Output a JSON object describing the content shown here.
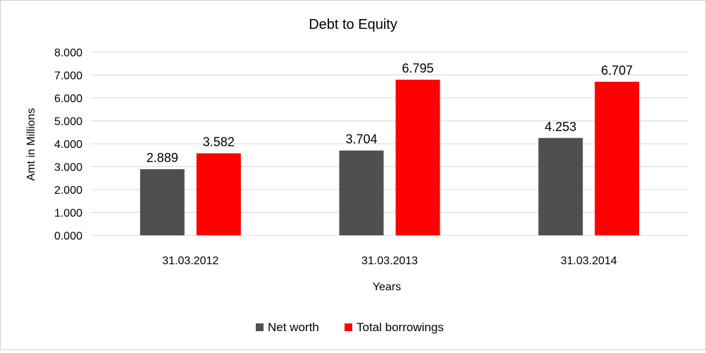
{
  "chart_data": {
    "type": "bar",
    "title": "Debt to Equity",
    "xlabel": "Years",
    "ylabel": "Amt in Millions",
    "categories": [
      "31.03.2012",
      "31.03.2013",
      "31.03.2014"
    ],
    "series": [
      {
        "name": "Net worth",
        "values": [
          2.889,
          3.704,
          4.253
        ],
        "color": "#4f4f4f",
        "labels": [
          "2.889",
          "3.704",
          "4.253"
        ]
      },
      {
        "name": "Total borrowings",
        "values": [
          3.582,
          6.795,
          6.707
        ],
        "color": "#ff0000",
        "labels": [
          "3.582",
          "6.795",
          "6.707"
        ]
      }
    ],
    "ylim": [
      0,
      8
    ],
    "yticks": [
      "0.000",
      "1.000",
      "2.000",
      "3.000",
      "4.000",
      "5.000",
      "6.000",
      "7.000",
      "8.000"
    ],
    "grid": true,
    "legend": "bottom-center"
  }
}
